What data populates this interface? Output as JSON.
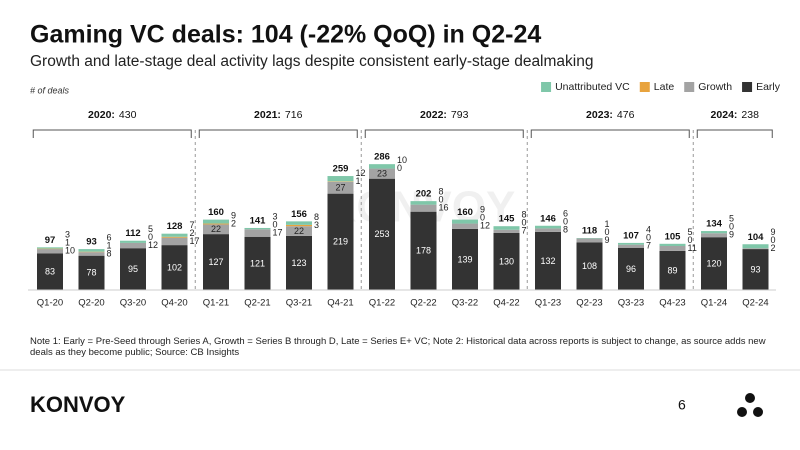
{
  "chart_data": {
    "type": "stacked_bar",
    "title": "Gaming VC deals: 104 (-22% QoQ) in Q2-24",
    "subtitle": "Growth and late-stage deal activity lags despite consistent early-stage dealmaking",
    "y_label": "# of deals",
    "watermark": "KONVOY",
    "categories": [
      "Q1-20",
      "Q2-20",
      "Q3-20",
      "Q4-20",
      "Q1-21",
      "Q2-21",
      "Q3-21",
      "Q4-21",
      "Q1-22",
      "Q2-22",
      "Q3-22",
      "Q4-22",
      "Q1-23",
      "Q2-23",
      "Q3-23",
      "Q4-23",
      "Q1-24",
      "Q2-24"
    ],
    "series": [
      {
        "name": "Early",
        "color": "#333333",
        "values": [
          83,
          78,
          95,
          102,
          127,
          121,
          123,
          219,
          253,
          178,
          139,
          130,
          132,
          108,
          96,
          89,
          120,
          93
        ]
      },
      {
        "name": "Growth",
        "color": "#a3a3a3",
        "values": [
          10,
          8,
          12,
          17,
          22,
          17,
          22,
          27,
          23,
          16,
          12,
          7,
          8,
          9,
          7,
          11,
          9,
          2
        ]
      },
      {
        "name": "Late",
        "color": "#e8a33d",
        "values": [
          1,
          1,
          0,
          2,
          2,
          0,
          3,
          1,
          0,
          0,
          0,
          0,
          0,
          0,
          0,
          0,
          0,
          0
        ]
      },
      {
        "name": "Unattributed VC",
        "color": "#7fc7a9",
        "values": [
          3,
          6,
          5,
          7,
          9,
          3,
          8,
          12,
          10,
          8,
          9,
          8,
          6,
          1,
          4,
          5,
          5,
          9
        ]
      }
    ],
    "totals": [
      97,
      93,
      112,
      128,
      160,
      141,
      156,
      259,
      286,
      202,
      160,
      145,
      146,
      118,
      107,
      105,
      134,
      104
    ],
    "years": [
      {
        "label": "2020:",
        "total": 430
      },
      {
        "label": "2021:",
        "total": 716
      },
      {
        "label": "2022:",
        "total": 793
      },
      {
        "label": "2023:",
        "total": 476
      },
      {
        "label": "2024:",
        "total": 238
      }
    ],
    "ylim": [
      0,
      300
    ],
    "legend": "top-right"
  },
  "notes": "Note 1: Early = Pre-Seed through Series A, Growth = Series B through D, Late = Series E+ VC; Note 2: Historical data across reports is subject to change, as source adds new deals as they become public; Source: CB Insights",
  "footer": {
    "brand": "KONVOY",
    "page": "6"
  }
}
